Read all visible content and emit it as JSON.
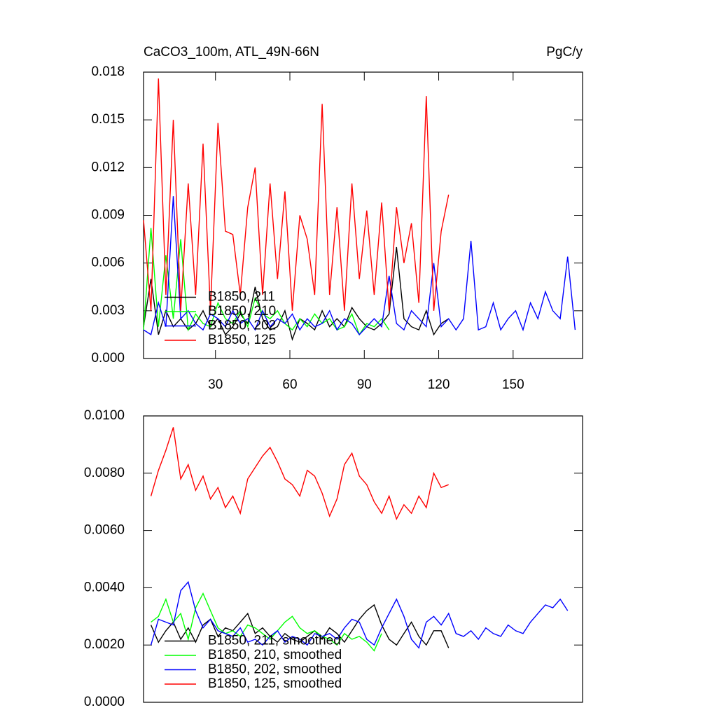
{
  "chart_data": [
    {
      "type": "line",
      "title": "CaCO3_100m, ATL_49N-66N",
      "units": "PgC/y",
      "legend": "lower left",
      "xlim": [
        1,
        178
      ],
      "xticks": [
        30,
        60,
        90,
        120,
        150
      ],
      "ylim": [
        0,
        0.018
      ],
      "yticks": [
        {
          "value": 0,
          "label": "0.000"
        },
        {
          "value": 0.003,
          "label": "0.003"
        },
        {
          "value": 0.006,
          "label": "0.006"
        },
        {
          "value": 0.009,
          "label": "0.009"
        },
        {
          "value": 0.012,
          "label": "0.012"
        },
        {
          "value": 0.015,
          "label": "0.015"
        },
        {
          "value": 0.018,
          "label": "0.018"
        }
      ],
      "series": [
        {
          "name": "B1850, 211",
          "color": "#000000",
          "x": [
            1,
            4,
            7,
            10,
            13,
            16,
            19,
            22,
            25,
            28,
            31,
            34,
            37,
            40,
            43,
            46,
            49,
            52,
            55,
            58,
            61,
            64,
            67,
            70,
            73,
            76,
            79,
            82,
            85,
            88,
            91,
            94,
            97,
            100,
            103,
            106,
            109,
            112,
            115,
            118,
            121,
            124
          ],
          "values": [
            0.002,
            0.005,
            0.0015,
            0.003,
            0.002,
            0.0025,
            0.0018,
            0.0022,
            0.003,
            0.002,
            0.0025,
            0.0015,
            0.002,
            0.0028,
            0.0022,
            0.0045,
            0.0025,
            0.0018,
            0.002,
            0.003,
            0.0012,
            0.0025,
            0.0022,
            0.0018,
            0.003,
            0.002,
            0.0025,
            0.002,
            0.0032,
            0.0025,
            0.002,
            0.0018,
            0.0022,
            0.0028,
            0.007,
            0.0025,
            0.002,
            0.0018,
            0.003,
            0.0015,
            0.0022,
            0.0025
          ]
        },
        {
          "name": "B1850, 210",
          "color": "#00ff00",
          "x": [
            1,
            4,
            7,
            10,
            13,
            16,
            19,
            22,
            25,
            28,
            31,
            34,
            37,
            40,
            43,
            46,
            49,
            52,
            55,
            58,
            61,
            64,
            67,
            70,
            73,
            76,
            79,
            82,
            85,
            88,
            91,
            94,
            97,
            100
          ],
          "values": [
            0.0018,
            0.0082,
            0.002,
            0.0065,
            0.0025,
            0.0075,
            0.0018,
            0.0028,
            0.0022,
            0.002,
            0.0035,
            0.0025,
            0.0022,
            0.003,
            0.002,
            0.0038,
            0.0028,
            0.0025,
            0.003,
            0.0022,
            0.0018,
            0.0025,
            0.002,
            0.0028,
            0.0022,
            0.0025,
            0.0018,
            0.002,
            0.0028,
            0.0015,
            0.0022,
            0.002,
            0.0025,
            0.0018
          ]
        },
        {
          "name": "B1850, 202",
          "color": "#0000ff",
          "x": [
            1,
            4,
            7,
            10,
            13,
            16,
            19,
            22,
            25,
            28,
            31,
            34,
            37,
            40,
            43,
            46,
            49,
            52,
            55,
            58,
            61,
            64,
            67,
            70,
            73,
            76,
            79,
            82,
            85,
            88,
            91,
            94,
            97,
            100,
            103,
            106,
            109,
            112,
            115,
            118,
            121,
            124,
            127,
            130,
            133,
            136,
            139,
            142,
            145,
            148,
            151,
            154,
            157,
            160,
            163,
            166,
            169,
            172,
            175
          ],
          "values": [
            0.0018,
            0.0015,
            0.0035,
            0.002,
            0.0102,
            0.0025,
            0.003,
            0.0022,
            0.0018,
            0.0028,
            0.0025,
            0.002,
            0.003,
            0.0022,
            0.0025,
            0.0018,
            0.003,
            0.002,
            0.0025,
            0.0022,
            0.0028,
            0.0018,
            0.0025,
            0.002,
            0.0022,
            0.003,
            0.0018,
            0.0025,
            0.0022,
            0.0015,
            0.002,
            0.0025,
            0.002,
            0.0052,
            0.0022,
            0.0018,
            0.003,
            0.0025,
            0.002,
            0.006,
            0.002,
            0.0025,
            0.0018,
            0.0025,
            0.0074,
            0.0018,
            0.002,
            0.0035,
            0.0018,
            0.0025,
            0.003,
            0.0018,
            0.0035,
            0.0025,
            0.0042,
            0.003,
            0.0025,
            0.0064,
            0.0018
          ]
        },
        {
          "name": "B1850, 125",
          "color": "#ff0000",
          "x": [
            1,
            4,
            7,
            10,
            13,
            16,
            19,
            22,
            25,
            28,
            31,
            34,
            37,
            40,
            43,
            46,
            49,
            52,
            55,
            58,
            61,
            64,
            67,
            70,
            73,
            76,
            79,
            82,
            85,
            88,
            91,
            94,
            97,
            100,
            103,
            106,
            109,
            112,
            115,
            118,
            121,
            124
          ],
          "values": [
            0.0087,
            0.003,
            0.0176,
            0.004,
            0.015,
            0.003,
            0.011,
            0.004,
            0.0135,
            0.003,
            0.0148,
            0.008,
            0.0078,
            0.004,
            0.0095,
            0.012,
            0.004,
            0.011,
            0.005,
            0.0105,
            0.003,
            0.009,
            0.0075,
            0.004,
            0.016,
            0.004,
            0.0095,
            0.003,
            0.011,
            0.005,
            0.0093,
            0.004,
            0.0098,
            0.003,
            0.0095,
            0.006,
            0.0085,
            0.0035,
            0.0165,
            0.003,
            0.008,
            0.0103
          ]
        }
      ]
    },
    {
      "type": "line",
      "legend": "lower left",
      "xlim": [
        1,
        178
      ],
      "ylim": [
        0,
        0.01
      ],
      "yticks": [
        {
          "value": 0,
          "label": "0.0000"
        },
        {
          "value": 0.002,
          "label": "0.0020"
        },
        {
          "value": 0.004,
          "label": "0.0040"
        },
        {
          "value": 0.006,
          "label": "0.0060"
        },
        {
          "value": 0.008,
          "label": "0.0080"
        },
        {
          "value": 0.01,
          "label": "0.0100"
        }
      ],
      "series": [
        {
          "name": "B1850, 211, smoothed",
          "color": "#000000",
          "x": [
            4,
            7,
            10,
            13,
            16,
            19,
            22,
            25,
            28,
            31,
            34,
            37,
            40,
            43,
            46,
            49,
            52,
            55,
            58,
            61,
            64,
            67,
            70,
            73,
            76,
            79,
            82,
            85,
            88,
            91,
            94,
            97,
            100,
            103,
            106,
            109,
            112,
            115,
            118,
            121,
            124
          ],
          "values": [
            0.0027,
            0.0021,
            0.0025,
            0.0028,
            0.0022,
            0.0026,
            0.0021,
            0.0027,
            0.0029,
            0.0023,
            0.0026,
            0.0025,
            0.0028,
            0.0031,
            0.0024,
            0.0026,
            0.0023,
            0.0021,
            0.0024,
            0.0022,
            0.0021,
            0.0023,
            0.0025,
            0.0022,
            0.0026,
            0.0024,
            0.0021,
            0.0025,
            0.0029,
            0.0032,
            0.0034,
            0.0027,
            0.0022,
            0.002,
            0.0024,
            0.0028,
            0.0023,
            0.002,
            0.0025,
            0.0025,
            0.0019
          ]
        },
        {
          "name": "B1850, 210, smoothed",
          "color": "#00ff00",
          "x": [
            4,
            7,
            10,
            13,
            16,
            19,
            22,
            25,
            28,
            31,
            34,
            37,
            40,
            43,
            46,
            49,
            52,
            55,
            58,
            61,
            64,
            67,
            70,
            73,
            76,
            79,
            82,
            85,
            88,
            91,
            94,
            97
          ],
          "values": [
            0.0028,
            0.003,
            0.0036,
            0.0028,
            0.0031,
            0.0022,
            0.0033,
            0.0038,
            0.0032,
            0.0026,
            0.0024,
            0.0025,
            0.0023,
            0.0027,
            0.0026,
            0.0024,
            0.0022,
            0.0025,
            0.0028,
            0.003,
            0.0026,
            0.0024,
            0.0025,
            0.0023,
            0.0022,
            0.002,
            0.0024,
            0.0022,
            0.0023,
            0.0021,
            0.0018,
            0.0024
          ]
        },
        {
          "name": "B1850, 202, smoothed",
          "color": "#0000ff",
          "x": [
            4,
            7,
            10,
            13,
            16,
            19,
            22,
            25,
            28,
            31,
            34,
            37,
            40,
            43,
            46,
            49,
            52,
            55,
            58,
            61,
            64,
            67,
            70,
            73,
            76,
            79,
            82,
            85,
            88,
            91,
            94,
            97,
            100,
            103,
            106,
            109,
            112,
            115,
            118,
            121,
            124,
            127,
            130,
            133,
            136,
            139,
            142,
            145,
            148,
            151,
            154,
            157,
            160,
            163,
            166,
            169,
            172
          ],
          "values": [
            0.002,
            0.0029,
            0.0028,
            0.0027,
            0.0039,
            0.0042,
            0.0032,
            0.0026,
            0.0029,
            0.0025,
            0.0024,
            0.0023,
            0.0026,
            0.0021,
            0.0022,
            0.002,
            0.0023,
            0.0025,
            0.0021,
            0.0023,
            0.0022,
            0.002,
            0.0024,
            0.0023,
            0.0024,
            0.0022,
            0.0026,
            0.0029,
            0.0028,
            0.0022,
            0.002,
            0.0026,
            0.0031,
            0.0036,
            0.003,
            0.0022,
            0.0019,
            0.0028,
            0.003,
            0.0027,
            0.0031,
            0.0024,
            0.0023,
            0.0025,
            0.0022,
            0.0026,
            0.0024,
            0.0023,
            0.0027,
            0.0025,
            0.0024,
            0.0028,
            0.0031,
            0.0034,
            0.0033,
            0.0036,
            0.0032
          ]
        },
        {
          "name": "B1850, 125, smoothed",
          "color": "#ff0000",
          "x": [
            4,
            7,
            10,
            13,
            16,
            19,
            22,
            25,
            28,
            31,
            34,
            37,
            40,
            43,
            46,
            49,
            52,
            55,
            58,
            61,
            64,
            67,
            70,
            73,
            76,
            79,
            82,
            85,
            88,
            91,
            94,
            97,
            100,
            103,
            106,
            109,
            112,
            115,
            118,
            121,
            124
          ],
          "values": [
            0.0072,
            0.0081,
            0.0088,
            0.0096,
            0.0078,
            0.0083,
            0.0074,
            0.0079,
            0.0071,
            0.0075,
            0.0068,
            0.0072,
            0.0066,
            0.0078,
            0.0082,
            0.0086,
            0.0089,
            0.0084,
            0.0078,
            0.0076,
            0.0072,
            0.0081,
            0.0079,
            0.0073,
            0.0065,
            0.0071,
            0.0083,
            0.0087,
            0.0079,
            0.0076,
            0.007,
            0.0066,
            0.0072,
            0.0064,
            0.0069,
            0.0066,
            0.0072,
            0.0068,
            0.008,
            0.0075,
            0.0076
          ]
        }
      ]
    }
  ]
}
